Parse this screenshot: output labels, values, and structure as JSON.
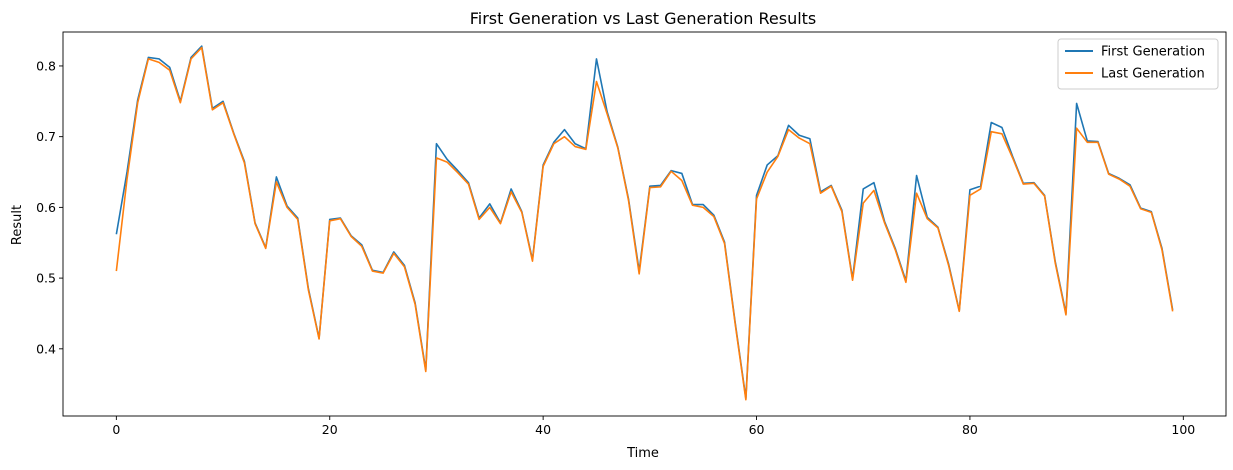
{
  "chart_data": {
    "type": "line",
    "title": "First Generation vs Last Generation Results",
    "xlabel": "Time",
    "ylabel": "Result",
    "xlim": [
      -5,
      104
    ],
    "ylim": [
      0.305,
      0.848
    ],
    "xticks": [
      0,
      20,
      40,
      60,
      80,
      100
    ],
    "yticks": [
      0.4,
      0.5,
      0.6,
      0.7,
      0.8
    ],
    "ytick_labels": [
      "0.4",
      "0.5",
      "0.6",
      "0.7",
      "0.8"
    ],
    "xtick_labels": [
      "0",
      "20",
      "40",
      "60",
      "80",
      "100"
    ],
    "grid": false,
    "legend": "top-right",
    "x": [
      0,
      1,
      2,
      3,
      4,
      5,
      6,
      7,
      8,
      9,
      10,
      11,
      12,
      13,
      14,
      15,
      16,
      17,
      18,
      19,
      20,
      21,
      22,
      23,
      24,
      25,
      26,
      27,
      28,
      29,
      30,
      31,
      32,
      33,
      34,
      35,
      36,
      37,
      38,
      39,
      40,
      41,
      42,
      43,
      44,
      45,
      46,
      47,
      48,
      49,
      50,
      51,
      52,
      53,
      54,
      55,
      56,
      57,
      58,
      59,
      60,
      61,
      62,
      63,
      64,
      65,
      66,
      67,
      68,
      69,
      70,
      71,
      72,
      73,
      74,
      75,
      76,
      77,
      78,
      79,
      80,
      81,
      82,
      83,
      84,
      85,
      86,
      87,
      88,
      89,
      90,
      91,
      92,
      93,
      94,
      95,
      96,
      97,
      98,
      99
    ],
    "series": [
      {
        "name": "First Generation",
        "color": "#1f77b4",
        "values": [
          0.562,
          0.65,
          0.752,
          0.812,
          0.81,
          0.798,
          0.75,
          0.812,
          0.828,
          0.74,
          0.75,
          0.705,
          0.665,
          0.578,
          0.543,
          0.643,
          0.602,
          0.585,
          0.485,
          0.415,
          0.583,
          0.585,
          0.56,
          0.547,
          0.511,
          0.508,
          0.537,
          0.518,
          0.465,
          0.37,
          0.69,
          0.668,
          0.652,
          0.635,
          0.585,
          0.605,
          0.578,
          0.626,
          0.594,
          0.526,
          0.66,
          0.692,
          0.71,
          0.69,
          0.683,
          0.81,
          0.735,
          0.685,
          0.612,
          0.51,
          0.63,
          0.631,
          0.652,
          0.648,
          0.604,
          0.604,
          0.589,
          0.551,
          0.437,
          0.33,
          0.617,
          0.66,
          0.673,
          0.716,
          0.702,
          0.697,
          0.622,
          0.631,
          0.596,
          0.499,
          0.626,
          0.635,
          0.58,
          0.542,
          0.496,
          0.645,
          0.586,
          0.572,
          0.52,
          0.454,
          0.625,
          0.63,
          0.72,
          0.713,
          0.672,
          0.634,
          0.635,
          0.617,
          0.523,
          0.45,
          0.747,
          0.694,
          0.693,
          0.648,
          0.641,
          0.632,
          0.599,
          0.594,
          0.542,
          0.455
        ]
      },
      {
        "name": "Last Generation",
        "color": "#ff7f0e",
        "values": [
          0.51,
          0.64,
          0.748,
          0.81,
          0.805,
          0.794,
          0.748,
          0.81,
          0.826,
          0.738,
          0.748,
          0.704,
          0.663,
          0.577,
          0.542,
          0.636,
          0.6,
          0.583,
          0.483,
          0.414,
          0.581,
          0.584,
          0.559,
          0.545,
          0.51,
          0.507,
          0.535,
          0.516,
          0.463,
          0.368,
          0.67,
          0.664,
          0.649,
          0.633,
          0.583,
          0.6,
          0.577,
          0.622,
          0.593,
          0.524,
          0.658,
          0.69,
          0.7,
          0.686,
          0.682,
          0.778,
          0.732,
          0.684,
          0.61,
          0.506,
          0.628,
          0.629,
          0.651,
          0.638,
          0.603,
          0.6,
          0.587,
          0.549,
          0.435,
          0.328,
          0.612,
          0.65,
          0.672,
          0.71,
          0.698,
          0.69,
          0.62,
          0.63,
          0.594,
          0.497,
          0.606,
          0.624,
          0.578,
          0.54,
          0.494,
          0.62,
          0.584,
          0.571,
          0.518,
          0.453,
          0.617,
          0.626,
          0.707,
          0.704,
          0.67,
          0.633,
          0.634,
          0.616,
          0.521,
          0.448,
          0.712,
          0.692,
          0.692,
          0.647,
          0.64,
          0.63,
          0.598,
          0.593,
          0.54,
          0.453
        ]
      }
    ]
  }
}
